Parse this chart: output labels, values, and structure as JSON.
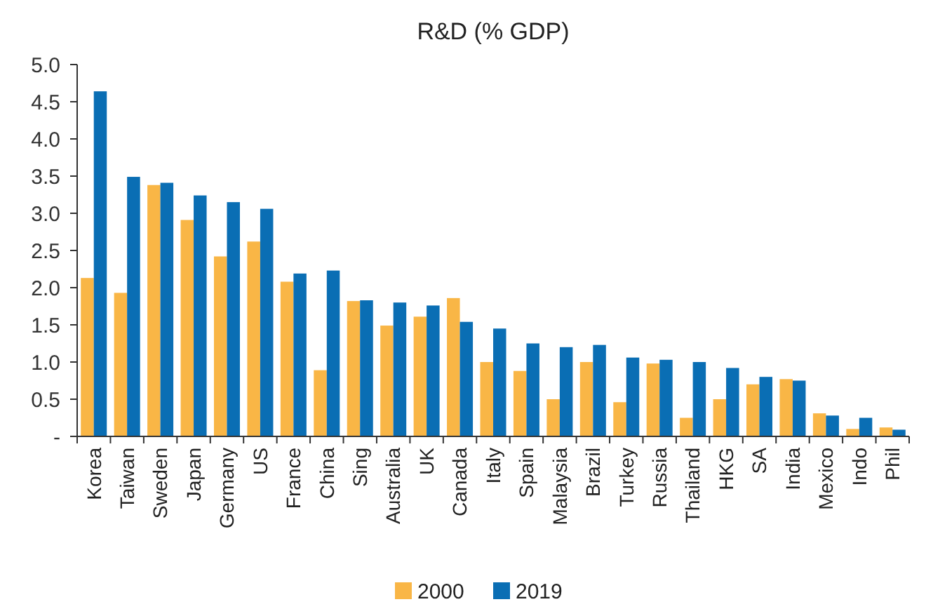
{
  "chart_data": {
    "type": "bar",
    "title": "R&D (% GDP)",
    "categories": [
      "Korea",
      "Taiwan",
      "Sweden",
      "Japan",
      "Germany",
      "US",
      "France",
      "China",
      "Sing",
      "Australia",
      "UK",
      "Canada",
      "Italy",
      "Spain",
      "Malaysia",
      "Brazil",
      "Turkey",
      "Russia",
      "Thailand",
      "HKG",
      "SA",
      "India",
      "Mexico",
      "Indo",
      "Phil"
    ],
    "series": [
      {
        "name": "2000",
        "color": "#f9b646",
        "values": [
          2.13,
          1.93,
          3.38,
          2.91,
          2.42,
          2.62,
          2.08,
          0.89,
          1.82,
          1.49,
          1.61,
          1.86,
          1.0,
          0.88,
          0.5,
          1.0,
          0.46,
          0.98,
          0.25,
          0.5,
          0.7,
          0.77,
          0.31,
          0.1,
          0.12
        ]
      },
      {
        "name": "2019",
        "color": "#0a6eb4",
        "values": [
          4.64,
          3.49,
          3.41,
          3.24,
          3.15,
          3.06,
          2.19,
          2.23,
          1.83,
          1.8,
          1.76,
          1.54,
          1.45,
          1.25,
          1.2,
          1.23,
          1.06,
          1.03,
          1.0,
          0.92,
          0.8,
          0.75,
          0.28,
          0.25,
          0.09
        ]
      }
    ],
    "ylim": [
      0,
      5
    ],
    "yticks": [
      {
        "value": 0,
        "label": "-"
      },
      {
        "value": 0.5,
        "label": "0.5"
      },
      {
        "value": 1,
        "label": "1.0"
      },
      {
        "value": 1.5,
        "label": "1.5"
      },
      {
        "value": 2,
        "label": "2.0"
      },
      {
        "value": 2.5,
        "label": "2.5"
      },
      {
        "value": 3,
        "label": "3.0"
      },
      {
        "value": 3.5,
        "label": "3.5"
      },
      {
        "value": 4,
        "label": "4.0"
      },
      {
        "value": 4.5,
        "label": "4.5"
      },
      {
        "value": 5,
        "label": "5.0"
      }
    ],
    "grid": false,
    "legend": "bottom"
  }
}
